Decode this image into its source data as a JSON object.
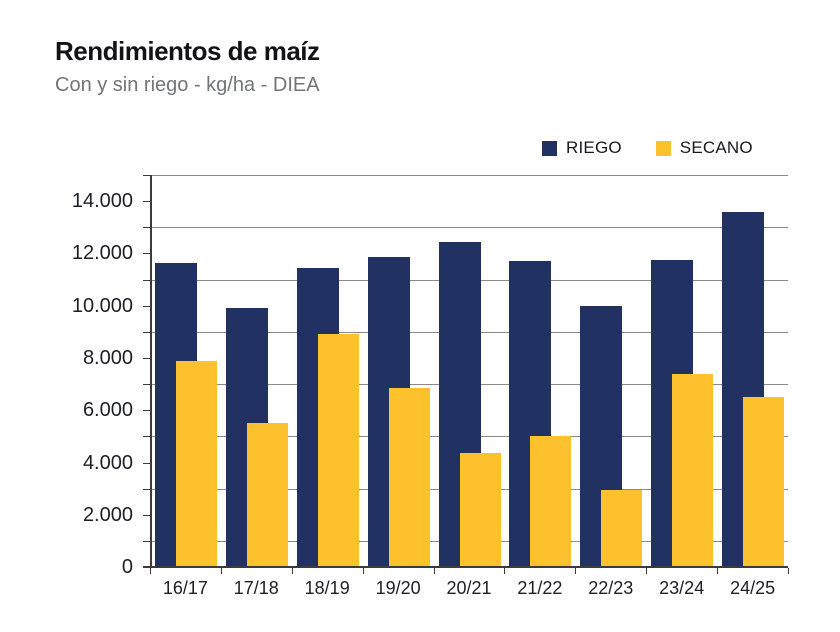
{
  "header": {
    "title": "Rendimientos de maíz",
    "subtitle": "Con y sin riego - kg/ha - DIEA"
  },
  "colors": {
    "riego": "#203162",
    "secano": "#FDC12D",
    "gridline": "#8a8a8a",
    "axis": "#3b3b3b"
  },
  "chart_data": {
    "type": "bar",
    "title": "Rendimientos de maíz",
    "subtitle": "Con y sin riego - kg/ha - DIEA",
    "unit": "kg/ha",
    "source": "DIEA",
    "categories": [
      "16/17",
      "17/18",
      "18/19",
      "19/20",
      "20/21",
      "21/22",
      "22/23",
      "23/24",
      "24/25"
    ],
    "series": [
      {
        "name": "RIEGO",
        "color": "#203162",
        "values": [
          11650,
          9900,
          11450,
          11850,
          12450,
          11700,
          10000,
          11750,
          13600
        ]
      },
      {
        "name": "SECANO",
        "color": "#FDC12D",
        "values": [
          7900,
          5500,
          8900,
          6850,
          4350,
          5000,
          2950,
          7400,
          6500
        ]
      }
    ],
    "ylim": [
      0,
      15000
    ],
    "ytick_interval": 2000,
    "ytick_labels": [
      "0",
      "2.000",
      "4.000",
      "6.000",
      "8.000",
      "10.000",
      "12.000",
      "14.000"
    ],
    "grid": "horizontal gridlines at odd thousands (1.000 steps of 2.000), plot top border at 15.000",
    "legend_position": "top-right above plot",
    "bar_overlap": "series overlap ~50%, SECANO drawn in front"
  }
}
